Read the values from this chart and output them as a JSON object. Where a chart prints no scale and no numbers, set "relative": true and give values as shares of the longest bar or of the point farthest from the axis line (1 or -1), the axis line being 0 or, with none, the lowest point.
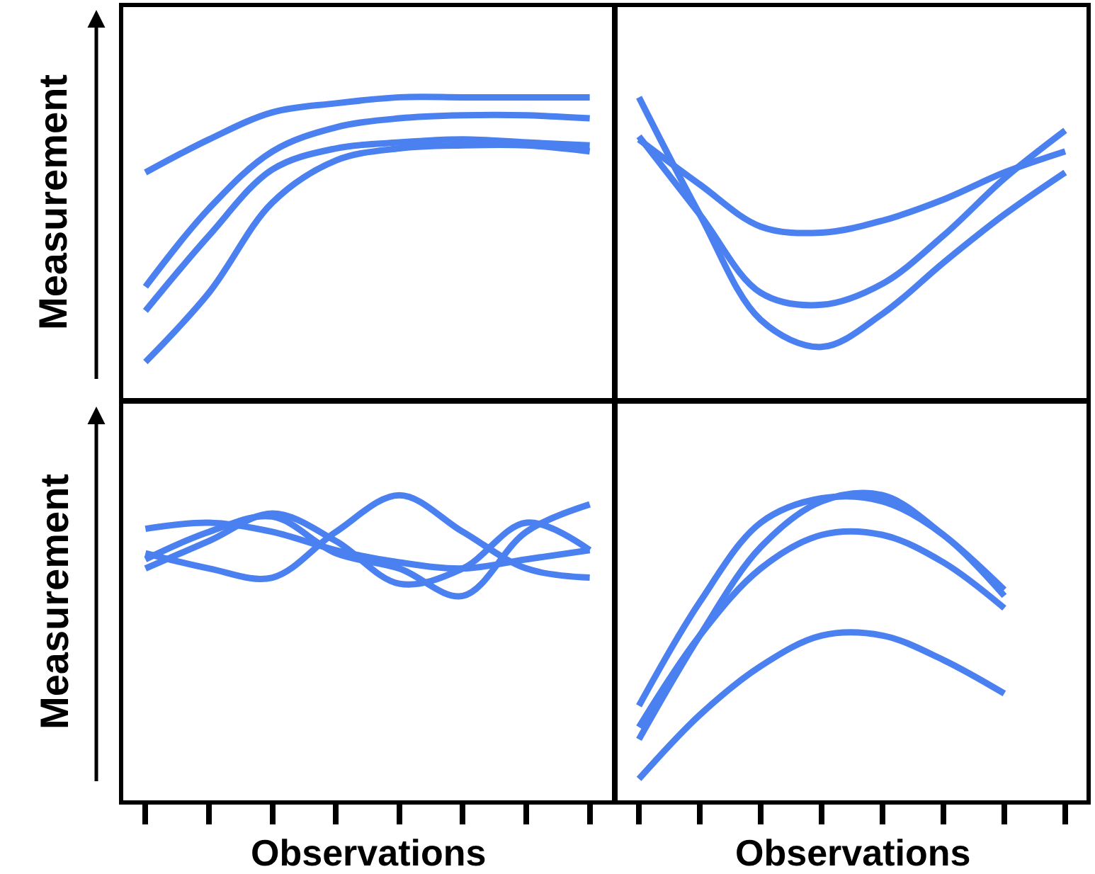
{
  "chart_data": [
    {
      "type": "line",
      "relative": true,
      "ylabel": "Measurement",
      "categories": [
        null,
        null,
        null,
        null,
        null,
        null,
        null,
        null
      ],
      "marker": "none",
      "line_style": "solid",
      "series": [
        {
          "color": "#4a80f0",
          "values": [
            0.75,
            0.86,
            0.95,
            0.98,
            1,
            1,
            1,
            1
          ]
        },
        {
          "color": "#4a80f0",
          "values": [
            0.37,
            0.63,
            0.82,
            0.9,
            0.93,
            0.94,
            0.94,
            0.93
          ]
        },
        {
          "color": "#4a80f0",
          "values": [
            0.29,
            0.54,
            0.76,
            0.83,
            0.85,
            0.86,
            0.85,
            0.84
          ]
        },
        {
          "color": "#4a80f0",
          "values": [
            0.12,
            0.35,
            0.65,
            0.79,
            0.83,
            0.84,
            0.84,
            0.82
          ]
        }
      ]
    },
    {
      "type": "line",
      "relative": true,
      "categories": [
        null,
        null,
        null,
        null,
        null,
        null,
        null,
        null
      ],
      "marker": "none",
      "line_style": "solid",
      "series": [
        {
          "color": "#4a80f0",
          "values": [
            1,
            0.61,
            0.26,
            0.17,
            0.28,
            0.45,
            0.61,
            0.75
          ]
        },
        {
          "color": "#4a80f0",
          "values": [
            0.87,
            0.61,
            0.35,
            0.31,
            0.38,
            0.54,
            0.73,
            0.89
          ]
        },
        {
          "color": "#4a80f0",
          "values": [
            0.86,
            0.71,
            0.57,
            0.55,
            0.59,
            0.66,
            0.75,
            0.82
          ]
        }
      ]
    },
    {
      "type": "line",
      "relative": true,
      "ylabel": "Measurement",
      "xlabel": "Observations",
      "categories": [
        null,
        null,
        null,
        null,
        null,
        null,
        null,
        null
      ],
      "marker": "none",
      "line_style": "solid",
      "series": [
        {
          "color": "#4a80f0",
          "values": [
            0.89,
            0.91,
            0.88,
            0.82,
            0.78,
            0.76,
            0.79,
            0.82
          ]
        },
        {
          "color": "#4a80f0",
          "values": [
            0.76,
            0.85,
            0.94,
            0.85,
            0.71,
            0.76,
            0.91,
            0.82
          ]
        },
        {
          "color": "#4a80f0",
          "values": [
            0.79,
            0.88,
            0.93,
            0.81,
            0.76,
            0.67,
            0.88,
            0.97
          ]
        },
        {
          "color": "#4a80f0",
          "values": [
            0.81,
            0.76,
            0.73,
            0.88,
            1,
            0.88,
            0.76,
            0.73
          ]
        }
      ]
    },
    {
      "type": "line",
      "relative": true,
      "xlabel": "Observations",
      "categories": [
        null,
        null,
        null,
        null,
        null,
        null,
        null,
        null
      ],
      "marker": "none",
      "line_style": "solid",
      "series": [
        {
          "color": "#4a80f0",
          "values": [
            0.31,
            0.65,
            0.91,
            0.99,
            0.98,
            0.87,
            0.67,
            null
          ]
        },
        {
          "color": "#4a80f0",
          "values": [
            0.2,
            0.54,
            0.83,
            0.98,
            1,
            0.87,
            0.69,
            null
          ]
        },
        {
          "color": "#4a80f0",
          "values": [
            0.24,
            0.54,
            0.76,
            0.87,
            0.87,
            0.78,
            0.63,
            null
          ]
        },
        {
          "color": "#4a80f0",
          "values": [
            0.07,
            0.28,
            0.44,
            0.54,
            0.54,
            0.46,
            0.35,
            null
          ]
        }
      ]
    }
  ]
}
